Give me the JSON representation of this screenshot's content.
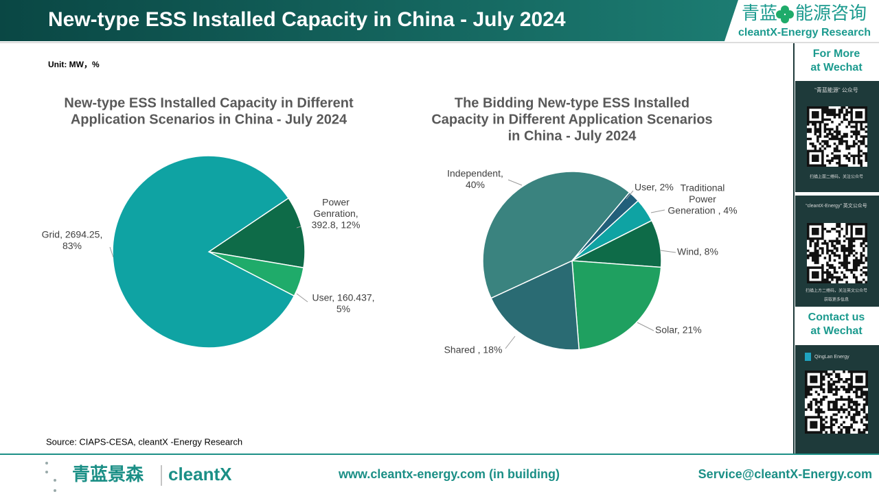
{
  "header": {
    "title": "New-type ESS Installed Capacity in China - July 2024",
    "brand_cn_left": "青蓝",
    "brand_cn_right": "能源咨询",
    "brand_en": "cleantX-Energy Research"
  },
  "unit": "Unit: MW，%",
  "chart_data": [
    {
      "type": "pie",
      "title": [
        "New-type ESS Installed Capacity in Different",
        "Application Scenarios in China - July 2024"
      ],
      "values": [
        392.8,
        160.437,
        2694.25
      ],
      "value_labels": [
        [
          "Power",
          "Genration,",
          "392.8, 12%"
        ],
        [
          "User, 160.437,",
          "5%"
        ],
        [
          "Grid, 2694.25,",
          "83%"
        ]
      ],
      "colors": [
        "#0e6b48",
        "#1fab6a",
        "#0fa3a3"
      ]
    },
    {
      "type": "pie",
      "title": [
        "The Bidding New-type ESS Installed",
        "Capacity in Different Application Scenarios",
        "in China - July 2024"
      ],
      "values": [
        2,
        4,
        8,
        21,
        18,
        40
      ],
      "value_labels": [
        [
          "User, 2%"
        ],
        [
          "Traditional",
          "Power",
          "Generation , 4%"
        ],
        [
          "Wind, 8%"
        ],
        [
          "Solar, 21%"
        ],
        [
          "Shared , 18%"
        ],
        [
          "Independent,",
          "40%"
        ]
      ],
      "colors": [
        "#225f7a",
        "#0fa3a3",
        "#0e6b48",
        "#1fa060",
        "#2a6b73",
        "#3a837f"
      ]
    }
  ],
  "source": "Source: CIAPS-CESA, cleantX -Energy Research",
  "sidebar": {
    "wechat_heading": [
      "For More",
      "at Wechat"
    ],
    "qr1_caption": "“青蓝能源” 公众号",
    "qr1_note": "扫描上面二维码，关注公众号",
    "qr2_caption": "“cleantX-Energy” 英文公众号",
    "qr2_note": [
      "扫描上方二维码，关注英文公众号",
      "获取更多信息"
    ],
    "contact_heading": [
      "Contact us",
      "at Wechat"
    ],
    "qr3_caption": "QingLan Energy"
  },
  "footer": {
    "logo_cn": "青蓝景森",
    "logo_en": "cleantX",
    "website": "www.cleantx-energy.com (in building)",
    "email": "Service@cleantX-Energy.com"
  }
}
